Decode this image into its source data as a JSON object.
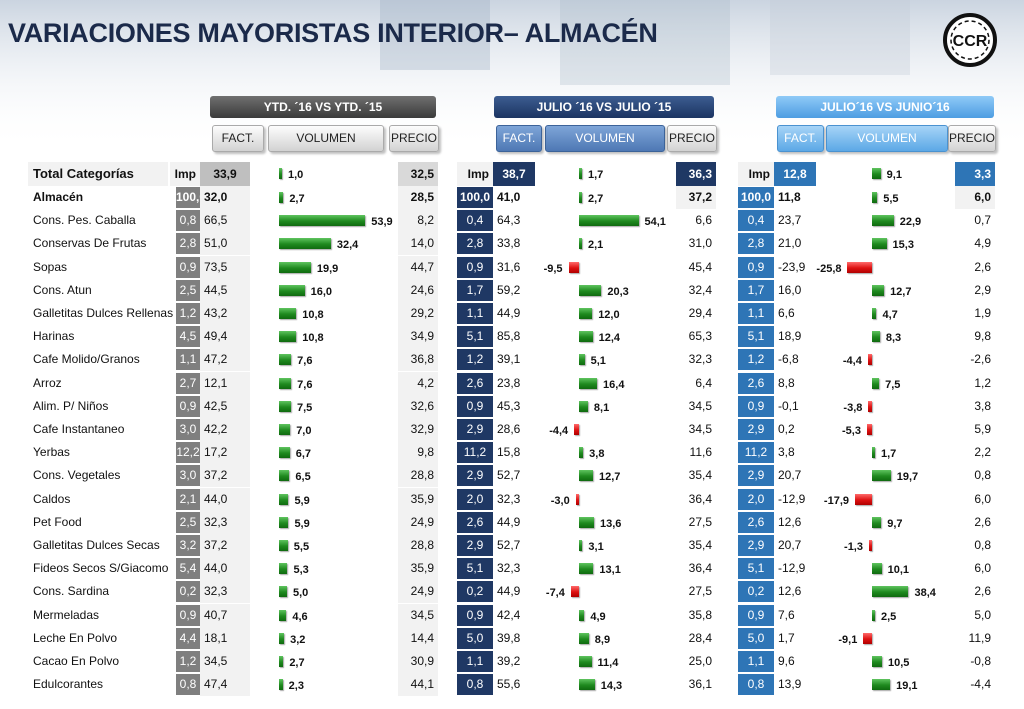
{
  "title": "VARIACIONES MAYORISTAS INTERIOR– ALMACÉN",
  "logo_text": "CCR",
  "colors": {
    "dark_blue": "#1f3864",
    "blue": "#2e5b9e",
    "light_blue": "#6ab2ef",
    "gray": "#d9d9d9",
    "green": "#1f8a1f",
    "red": "#dd1111"
  },
  "sections": [
    {
      "title": "YTD. ´16 VS YTD. ´15",
      "fact": "FACT.",
      "volumen": "VOLUMEN",
      "precio": "PRECIO"
    },
    {
      "title": "JULIO ´16 VS JULIO ´15",
      "fact": "FACT.",
      "volumen": "VOLUMEN",
      "precio": "PRECIO"
    },
    {
      "title": "JULIO´16 VS JUNIO´16",
      "fact": "FACT.",
      "volumen": "VOLUMEN",
      "precio": "PRECIO"
    }
  ],
  "header_row": {
    "category": "Total Categorías",
    "s1": {
      "imp": "Imp",
      "fact": "33,9",
      "vol": "1,0",
      "precio": "32,5"
    },
    "s2": {
      "imp": "Imp",
      "fact": "38,7",
      "vol": "1,7",
      "precio": "36,3"
    },
    "s3": {
      "imp": "Imp",
      "fact": "12,8",
      "vol": "9,1",
      "precio": "3,3"
    }
  },
  "rows": [
    {
      "name": "Almacén",
      "s1": [
        "100,0",
        "32,0",
        "2,7",
        "28,5"
      ],
      "s2": [
        "100,0",
        "41,0",
        "2,7",
        "37,2"
      ],
      "s3": [
        "100,0",
        "11,8",
        "5,5",
        "6,0"
      ]
    },
    {
      "name": "Cons. Pes. Caballa",
      "s1": [
        "0,8",
        "66,5",
        "53,9",
        "8,2"
      ],
      "s2": [
        "0,4",
        "64,3",
        "54,1",
        "6,6"
      ],
      "s3": [
        "0,4",
        "23,7",
        "22,9",
        "0,7"
      ]
    },
    {
      "name": "Conservas De Frutas",
      "s1": [
        "2,8",
        "51,0",
        "32,4",
        "14,0"
      ],
      "s2": [
        "2,8",
        "33,8",
        "2,1",
        "31,0"
      ],
      "s3": [
        "2,8",
        "21,0",
        "15,3",
        "4,9"
      ]
    },
    {
      "name": "Sopas",
      "s1": [
        "0,9",
        "73,5",
        "19,9",
        "44,7"
      ],
      "s2": [
        "0,9",
        "31,6",
        "-9,5",
        "45,4"
      ],
      "s3": [
        "0,9",
        "-23,9",
        "-25,8",
        "2,6"
      ]
    },
    {
      "name": "Cons. Atun",
      "s1": [
        "2,5",
        "44,5",
        "16,0",
        "24,6"
      ],
      "s2": [
        "1,7",
        "59,2",
        "20,3",
        "32,4"
      ],
      "s3": [
        "1,7",
        "16,0",
        "12,7",
        "2,9"
      ]
    },
    {
      "name": "Galletitas Dulces Rellenas",
      "s1": [
        "1,2",
        "43,2",
        "10,8",
        "29,2"
      ],
      "s2": [
        "1,1",
        "44,9",
        "12,0",
        "29,4"
      ],
      "s3": [
        "1,1",
        "6,6",
        "4,7",
        "1,9"
      ]
    },
    {
      "name": "Harinas",
      "s1": [
        "4,5",
        "49,4",
        "10,8",
        "34,9"
      ],
      "s2": [
        "5,1",
        "85,8",
        "12,4",
        "65,3"
      ],
      "s3": [
        "5,1",
        "18,9",
        "8,3",
        "9,8"
      ]
    },
    {
      "name": "Cafe Molido/Granos",
      "s1": [
        "1,1",
        "47,2",
        "7,6",
        "36,8"
      ],
      "s2": [
        "1,2",
        "39,1",
        "5,1",
        "32,3"
      ],
      "s3": [
        "1,2",
        "-6,8",
        "-4,4",
        "-2,6"
      ]
    },
    {
      "name": "Arroz",
      "s1": [
        "2,7",
        "12,1",
        "7,6",
        "4,2"
      ],
      "s2": [
        "2,6",
        "23,8",
        "16,4",
        "6,4"
      ],
      "s3": [
        "2,6",
        "8,8",
        "7,5",
        "1,2"
      ]
    },
    {
      "name": "Alim. P/ Niños",
      "s1": [
        "0,9",
        "42,5",
        "7,5",
        "32,6"
      ],
      "s2": [
        "0,9",
        "45,3",
        "8,1",
        "34,5"
      ],
      "s3": [
        "0,9",
        "-0,1",
        "-3,8",
        "3,8"
      ]
    },
    {
      "name": "Cafe Instantaneo",
      "s1": [
        "3,0",
        "42,2",
        "7,0",
        "32,9"
      ],
      "s2": [
        "2,9",
        "28,6",
        "-4,4",
        "34,5"
      ],
      "s3": [
        "2,9",
        "0,2",
        "-5,3",
        "5,9"
      ]
    },
    {
      "name": "Yerbas",
      "s1": [
        "12,2",
        "17,2",
        "6,7",
        "9,8"
      ],
      "s2": [
        "11,2",
        "15,8",
        "3,8",
        "11,6"
      ],
      "s3": [
        "11,2",
        "3,8",
        "1,7",
        "2,2"
      ]
    },
    {
      "name": "Cons. Vegetales",
      "s1": [
        "3,0",
        "37,2",
        "6,5",
        "28,8"
      ],
      "s2": [
        "2,9",
        "52,7",
        "12,7",
        "35,4"
      ],
      "s3": [
        "2,9",
        "20,7",
        "19,7",
        "0,8"
      ]
    },
    {
      "name": "Caldos",
      "s1": [
        "2,1",
        "44,0",
        "5,9",
        "35,9"
      ],
      "s2": [
        "2,0",
        "32,3",
        "-3,0",
        "36,4"
      ],
      "s3": [
        "2,0",
        "-12,9",
        "-17,9",
        "6,0"
      ]
    },
    {
      "name": "Pet Food",
      "s1": [
        "2,5",
        "32,3",
        "5,9",
        "24,9"
      ],
      "s2": [
        "2,6",
        "44,9",
        "13,6",
        "27,5"
      ],
      "s3": [
        "2,6",
        "12,6",
        "9,7",
        "2,6"
      ]
    },
    {
      "name": "Galletitas Dulces Secas",
      "s1": [
        "3,2",
        "37,2",
        "5,5",
        "28,8"
      ],
      "s2": [
        "2,9",
        "52,7",
        "3,1",
        "35,4"
      ],
      "s3": [
        "2,9",
        "20,7",
        "-1,3",
        "0,8"
      ]
    },
    {
      "name": "Fideos Secos S/Giacomo",
      "s1": [
        "5,4",
        "44,0",
        "5,3",
        "35,9"
      ],
      "s2": [
        "5,1",
        "32,3",
        "13,1",
        "36,4"
      ],
      "s3": [
        "5,1",
        "-12,9",
        "10,1",
        "6,0"
      ]
    },
    {
      "name": "Cons. Sardina",
      "s1": [
        "0,2",
        "32,3",
        "5,0",
        "24,9"
      ],
      "s2": [
        "0,2",
        "44,9",
        "-7,4",
        "27,5"
      ],
      "s3": [
        "0,2",
        "12,6",
        "38,4",
        "2,6"
      ]
    },
    {
      "name": "Mermeladas",
      "s1": [
        "0,9",
        "40,7",
        "4,6",
        "34,5"
      ],
      "s2": [
        "0,9",
        "42,4",
        "4,9",
        "35,8"
      ],
      "s3": [
        "0,9",
        "7,6",
        "2,5",
        "5,0"
      ]
    },
    {
      "name": "Leche En Polvo",
      "s1": [
        "4,4",
        "18,1",
        "3,2",
        "14,4"
      ],
      "s2": [
        "5,0",
        "39,8",
        "8,9",
        "28,4"
      ],
      "s3": [
        "5,0",
        "1,7",
        "-9,1",
        "11,9"
      ]
    },
    {
      "name": "Cacao En Polvo",
      "s1": [
        "1,2",
        "34,5",
        "2,7",
        "30,9"
      ],
      "s2": [
        "1,1",
        "39,2",
        "11,4",
        "25,0"
      ],
      "s3": [
        "1,1",
        "9,6",
        "10,5",
        "-0,8"
      ]
    },
    {
      "name": "Edulcorantes",
      "s1": [
        "0,8",
        "47,4",
        "2,3",
        "44,1"
      ],
      "s2": [
        "0,8",
        "55,6",
        "14,3",
        "36,1"
      ],
      "s3": [
        "0,8",
        "13,9",
        "19,1",
        "-4,4"
      ]
    }
  ]
}
